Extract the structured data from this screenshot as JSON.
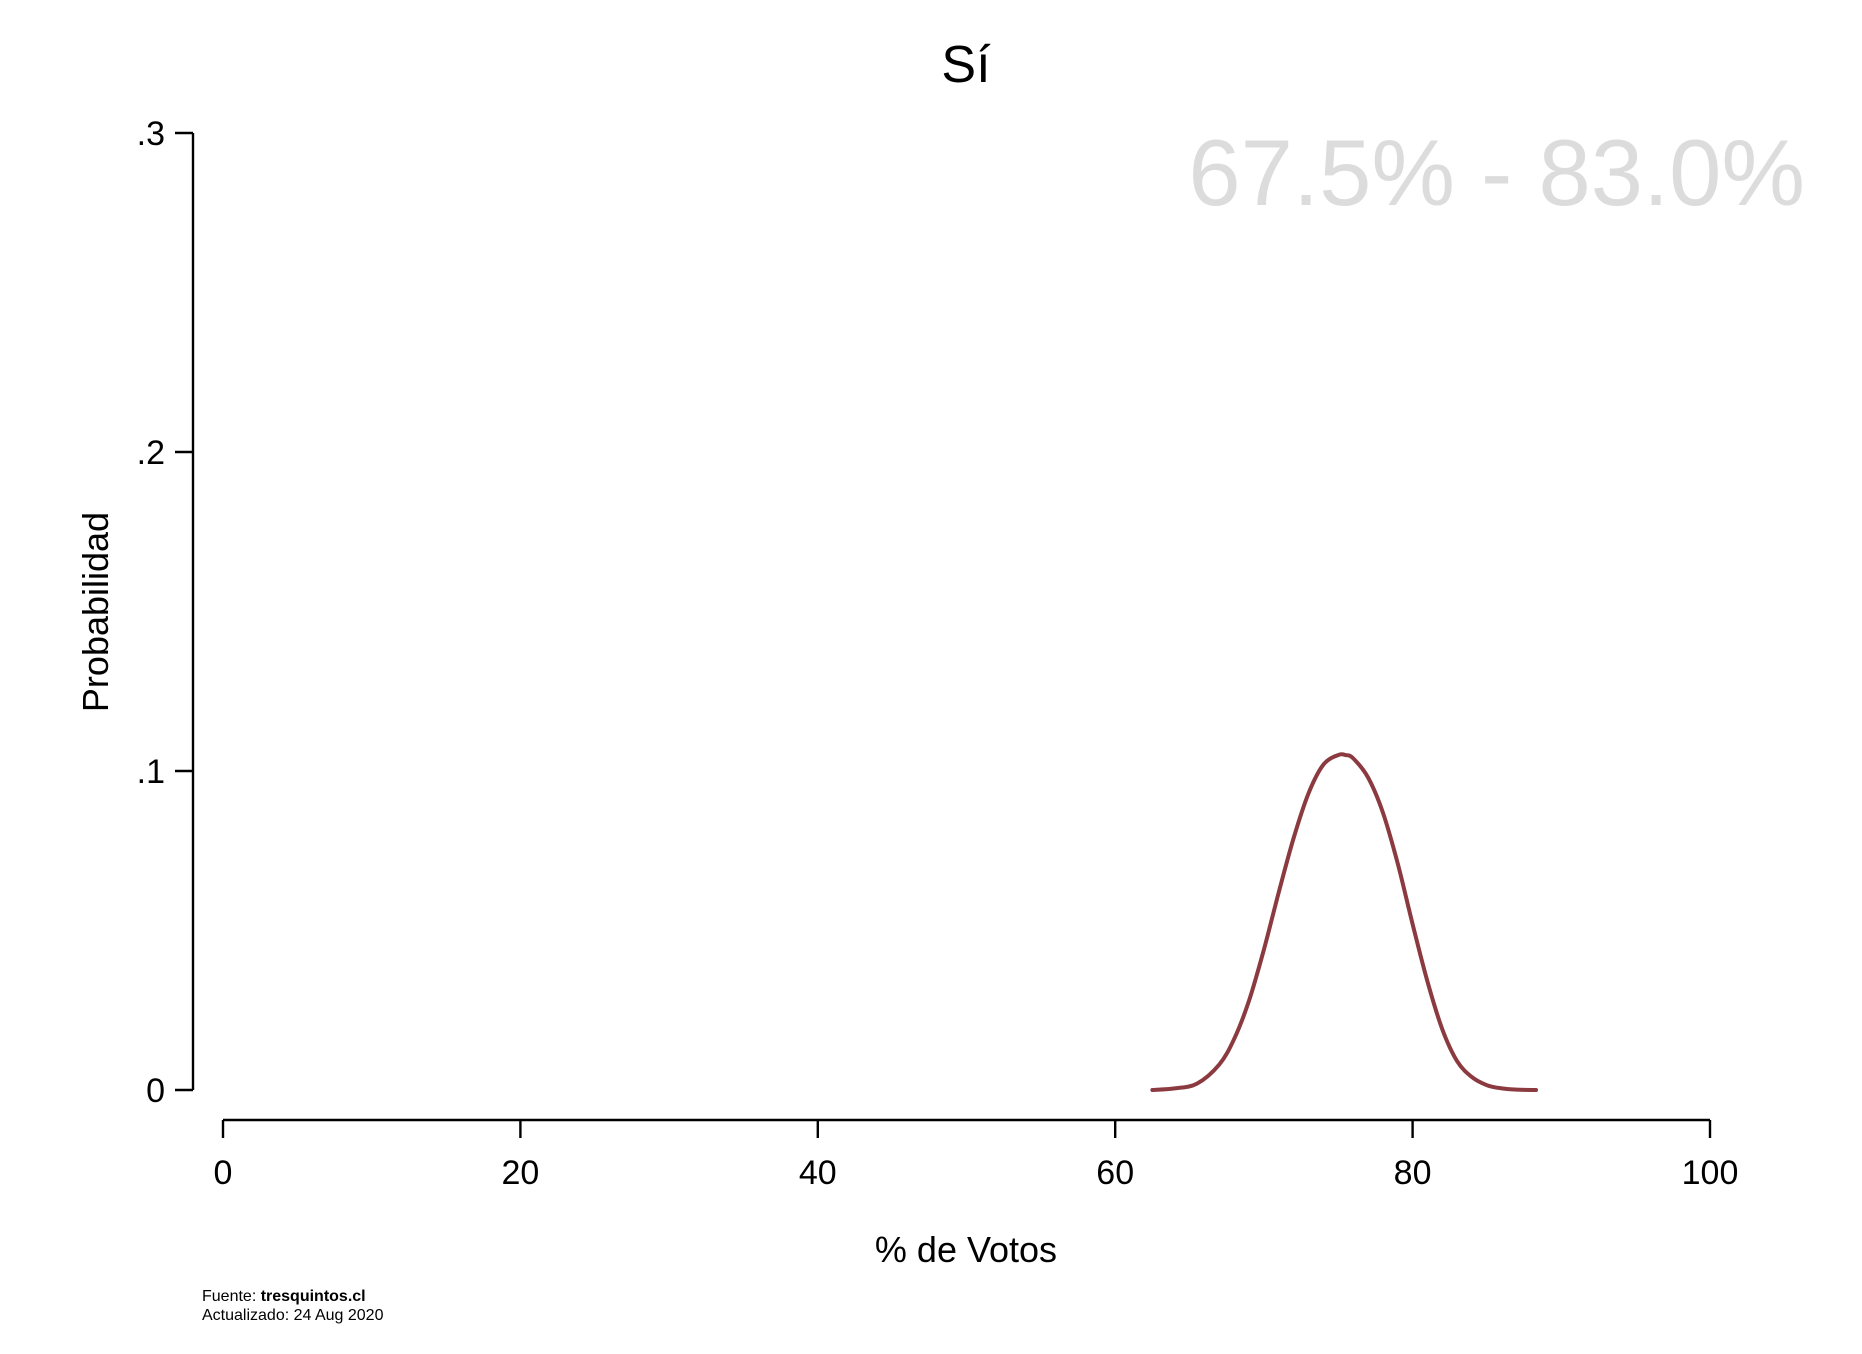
{
  "chart_data": {
    "type": "line",
    "title": "Sí",
    "xlabel": "% de Votos",
    "ylabel": "Probabilidad",
    "xlim": [
      0,
      100
    ],
    "ylim": [
      0,
      0.3
    ],
    "x_ticks": [
      {
        "value": 0,
        "label": "0"
      },
      {
        "value": 20,
        "label": "20"
      },
      {
        "value": 40,
        "label": "40"
      },
      {
        "value": 60,
        "label": "60"
      },
      {
        "value": 80,
        "label": "80"
      },
      {
        "value": 100,
        "label": "100"
      }
    ],
    "y_ticks": [
      {
        "value": 0,
        "label": "0"
      },
      {
        "value": 0.1,
        "label": ".1"
      },
      {
        "value": 0.2,
        "label": ".2"
      },
      {
        "value": 0.3,
        "label": ".3"
      }
    ],
    "grid": false,
    "legend": "none",
    "annotation": {
      "text": "67.5% - 83.0%",
      "placement": "top-right",
      "color": "#dcdcdc"
    },
    "series": [
      {
        "color": "#8b3a40",
        "x": [
          62.5,
          64,
          65.5,
          67,
          68,
          69,
          70,
          71,
          72,
          73,
          74,
          75,
          75.5,
          76,
          77,
          78,
          79,
          80,
          81,
          82,
          83,
          84,
          85,
          86,
          87,
          88.3
        ],
        "y": [
          0.0,
          0.0005,
          0.002,
          0.008,
          0.016,
          0.028,
          0.044,
          0.062,
          0.079,
          0.093,
          0.102,
          0.105,
          0.105,
          0.104,
          0.098,
          0.087,
          0.071,
          0.052,
          0.034,
          0.019,
          0.009,
          0.004,
          0.0015,
          0.0005,
          0.0001,
          0.0
        ]
      }
    ]
  },
  "footer": {
    "source_prefix": "Fuente: ",
    "source_name": "tresquintos.cl",
    "updated": "Actualizado: 24 Aug 2020"
  }
}
